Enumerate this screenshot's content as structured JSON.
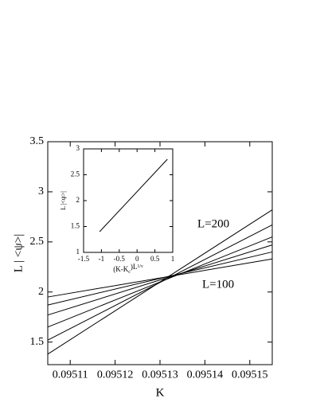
{
  "chart_data": [
    {
      "type": "line",
      "xlabel": "K",
      "ylabel": "L | <ψ>|",
      "x": [
        0.095105,
        0.095155
      ],
      "series": [
        {
          "color": "#000000",
          "values": [
            1.95,
            2.33
          ]
        },
        {
          "color": "#000000",
          "values": [
            1.87,
            2.4
          ]
        },
        {
          "color": "#000000",
          "values": [
            1.77,
            2.47
          ]
        },
        {
          "color": "#000000",
          "values": [
            1.65,
            2.55
          ]
        },
        {
          "color": "#000000",
          "values": [
            1.52,
            2.67
          ]
        },
        {
          "color": "#000000",
          "values": [
            1.38,
            2.82
          ]
        }
      ],
      "xlim": [
        0.095105,
        0.095155
      ],
      "xticks": [
        0.09511,
        0.09512,
        0.09513,
        0.09514,
        0.09515
      ],
      "ylim": [
        1.275,
        3.5
      ],
      "yticks": [
        1.5,
        2,
        2.5,
        3,
        3.5
      ],
      "annotations": [
        "L=200",
        "L=100"
      ]
    },
    {
      "type": "line",
      "xlabel_parts": [
        "(K-K",
        "c",
        ")L",
        "1/ν"
      ],
      "ylabel": "L |<ψ>|",
      "x": [
        -1.05,
        0.85
      ],
      "series": [
        {
          "color": "#000000",
          "values": [
            1.4,
            2.8
          ]
        }
      ],
      "xlim": [
        -1.5,
        1
      ],
      "xticks": [
        -1.5,
        -1,
        -0.5,
        0,
        0.5,
        1
      ],
      "ylim": [
        1,
        3
      ],
      "yticks": [
        1,
        1.5,
        2,
        2.5,
        3
      ]
    }
  ]
}
